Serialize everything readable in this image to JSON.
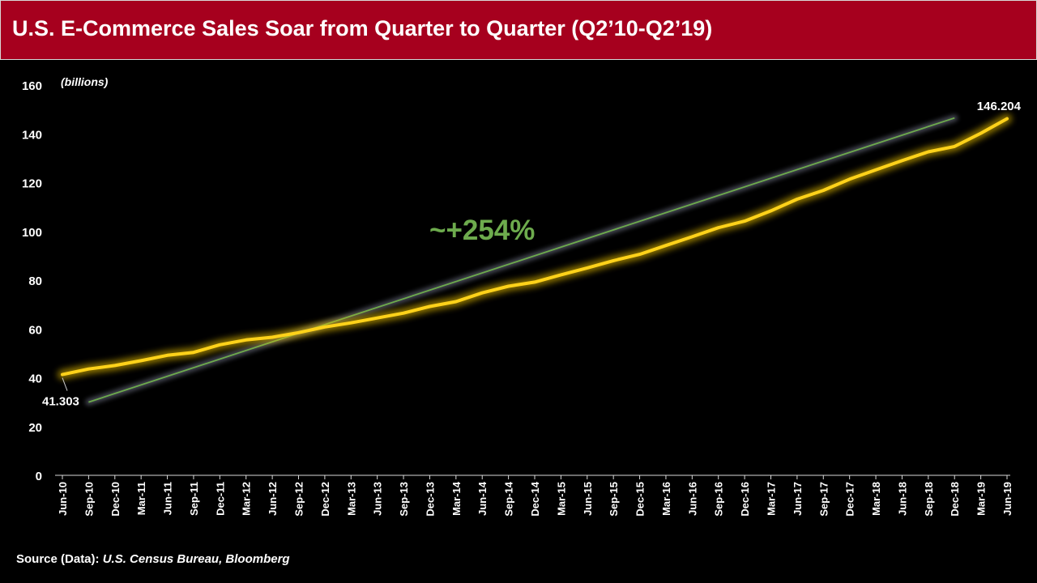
{
  "header": {
    "title": "U.S. E-Commerce Sales Soar from Quarter to Quarter (Q2’10-Q2’19)"
  },
  "footer": {
    "source_label": "Source (Data):",
    "source_value": "U.S. Census Bureau, Bloomberg"
  },
  "chart_data": {
    "type": "line",
    "title": "U.S. E-Commerce Sales Soar from Quarter to Quarter (Q2’10-Q2’19)",
    "ylabel": "(billions)",
    "xlabel": "",
    "ylim": [
      0,
      160
    ],
    "yticks": [
      0,
      20,
      40,
      60,
      80,
      100,
      120,
      140,
      160
    ],
    "grid": false,
    "categories": [
      "Jun-10",
      "Sep-10",
      "Dec-10",
      "Mar-11",
      "Jun-11",
      "Sep-11",
      "Dec-11",
      "Mar-12",
      "Jun-12",
      "Sep-12",
      "Dec-12",
      "Mar-13",
      "Jun-13",
      "Sep-13",
      "Dec-13",
      "Mar-14",
      "Jun-14",
      "Sep-14",
      "Dec-14",
      "Mar-15",
      "Jun-15",
      "Sep-15",
      "Dec-15",
      "Mar-16",
      "Jun-16",
      "Sep-16",
      "Dec-16",
      "Mar-17",
      "Jun-17",
      "Sep-17",
      "Dec-17",
      "Mar-18",
      "Jun-18",
      "Sep-18",
      "Dec-18",
      "Mar-19",
      "Jun-19"
    ],
    "series": [
      {
        "name": "",
        "color": "#ffd21a",
        "values": [
          41.303,
          43.6,
          45.0,
          47.0,
          49.2,
          50.4,
          53.5,
          55.5,
          56.6,
          58.5,
          60.8,
          62.5,
          64.5,
          66.5,
          69.2,
          71.2,
          74.8,
          77.5,
          79.2,
          82.2,
          85.0,
          88.0,
          90.6,
          94.2,
          97.8,
          101.5,
          104.2,
          108.4,
          113.2,
          116.8,
          121.4,
          125.2,
          129.0,
          132.6,
          134.8,
          140.2,
          146.204
        ]
      }
    ],
    "trendline": {
      "color": "#6dab4d",
      "start": {
        "x": "Sep-10",
        "y": 30
      },
      "end": {
        "x": "Dec-18",
        "y": 146.5
      }
    },
    "annotations": {
      "growth_label": "~+254%",
      "first_value_label": "41.303",
      "last_value_label": "146.204"
    }
  }
}
